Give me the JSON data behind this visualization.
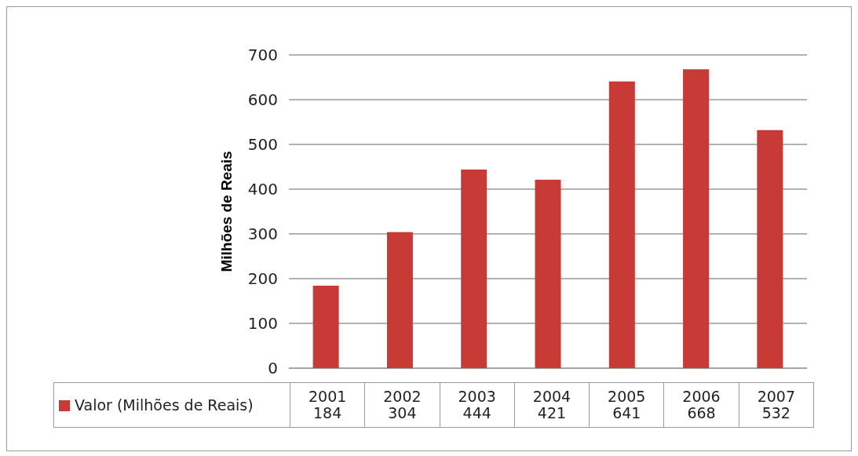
{
  "chart_data": {
    "type": "bar",
    "ylabel": "Milhões de Reais",
    "categories": [
      "2001",
      "2002",
      "2003",
      "2004",
      "2005",
      "2006",
      "2007"
    ],
    "series": [
      {
        "name": "Valor (Milhões de Reais)",
        "color": "#c83a35",
        "values": [
          184,
          304,
          444,
          421,
          641,
          668,
          532
        ]
      }
    ],
    "ylim": [
      0,
      700
    ],
    "yticks": [
      0,
      100,
      200,
      300,
      400,
      500,
      600,
      700
    ],
    "grid": "y",
    "legend": "bottom",
    "data_labels": true
  }
}
